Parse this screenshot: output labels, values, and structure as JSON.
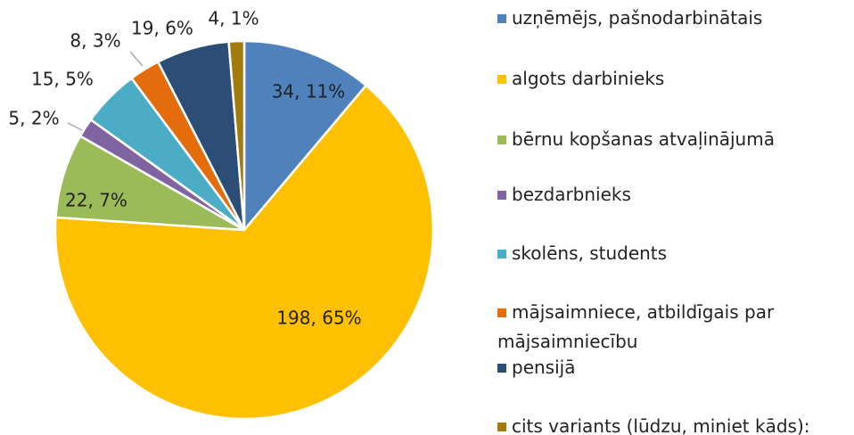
{
  "chart_data": {
    "type": "pie",
    "categories": [
      "uzņēmējs, pašnodarbinātais",
      "algots darbinieks",
      "bērnu kopšanas atvaļinājumā",
      "bezdarbnieks",
      "skolēns, students",
      "mājsaimniece, atbildīgais par mājsaimniecību",
      "pensijā",
      "cits variants (lūdzu, miniet kāds):"
    ],
    "values": [
      34,
      198,
      22,
      5,
      15,
      8,
      19,
      4
    ],
    "value_labels": [
      "34, 11%",
      "198, 65%",
      "22, 7%",
      "5, 2%",
      "15, 5%",
      "8, 3%",
      "19, 6%",
      "4, 1%"
    ],
    "colors": [
      "#4f81bd",
      "#ffc000",
      "#9bbb59",
      "#8064a2",
      "#4bacc6",
      "#e46c0a",
      "#2c4d75",
      "#a27b0c"
    ],
    "legend": "right"
  }
}
